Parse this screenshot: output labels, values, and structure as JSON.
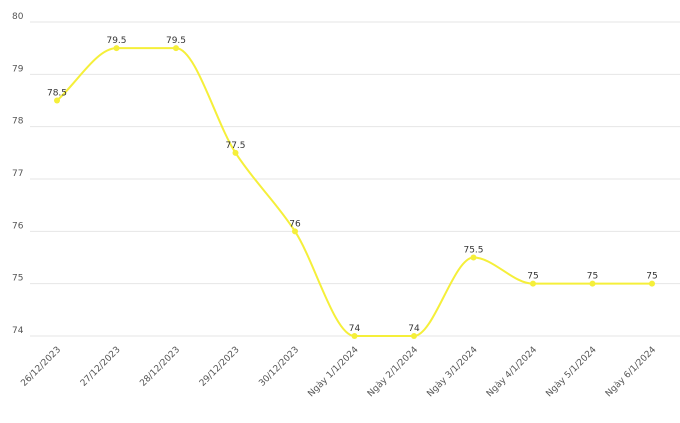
{
  "chart_data": {
    "type": "line",
    "categories": [
      "26/12/2023",
      "27/12/2023",
      "28/12/2023",
      "29/12/2023",
      "30/12/2023",
      "Ngày 1/1/2024",
      "Ngày 2/1/2024",
      "Ngày 3/1/2024",
      "Ngày 4/1/2024",
      "Ngày 5/1/2024",
      "Ngày 6/1/2024"
    ],
    "series": [
      {
        "values": [
          78.5,
          79.5,
          79.5,
          77.5,
          76,
          74,
          74,
          75.5,
          75,
          75,
          75
        ],
        "color": "#f5ef3a"
      }
    ],
    "ylim": [
      74,
      80
    ],
    "yticks": [
      74,
      75,
      76,
      77,
      78,
      79,
      80
    ],
    "grid": true,
    "data_labels": true,
    "title": "",
    "xlabel": "",
    "ylabel": ""
  }
}
